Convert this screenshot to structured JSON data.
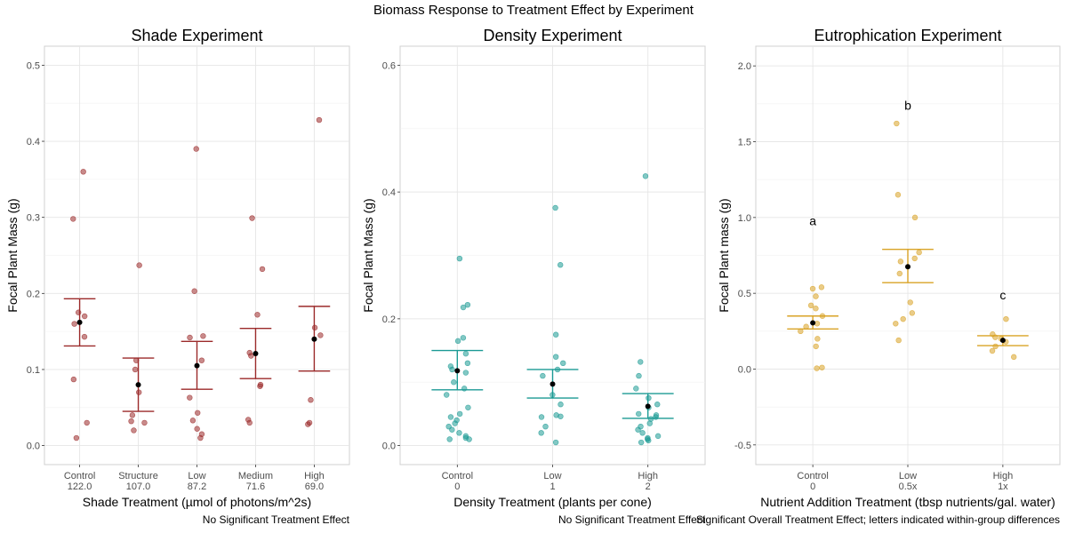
{
  "figure": {
    "title": "Biomass Response to Treatment Effect by Experiment"
  },
  "chart_data": [
    {
      "type": "scatter",
      "title": "Shade Experiment",
      "xlabel": "Shade Treatment (µmol of photons/m^2s)",
      "ylabel": "Focal Plant Mass (g)",
      "caption": "No Significant Treatment Effect",
      "color": "#9b2a2a",
      "categories": [
        "Control",
        "Structure",
        "Low",
        "Medium",
        "High"
      ],
      "sublabels": [
        "122.0",
        "107.0",
        "87.2",
        "71.6",
        "69.0"
      ],
      "ylim": [
        -0.025,
        0.525
      ],
      "yticks": [
        0.0,
        0.1,
        0.2,
        0.3,
        0.4,
        0.5
      ],
      "ytick_labels": [
        "0.0",
        "0.1",
        "0.2",
        "0.3",
        "0.4",
        "0.5"
      ],
      "grid": true,
      "means": [
        0.162,
        0.08,
        0.105,
        0.121,
        0.14
      ],
      "error_low": [
        0.131,
        0.045,
        0.074,
        0.088,
        0.098
      ],
      "error_high": [
        0.193,
        0.115,
        0.137,
        0.154,
        0.183
      ],
      "points": [
        [
          0.36,
          0.298,
          0.175,
          0.17,
          0.16,
          0.143,
          0.087,
          0.03,
          0.01
        ],
        [
          0.237,
          0.112,
          0.1,
          0.07,
          0.04,
          0.032,
          0.03,
          0.02
        ],
        [
          0.39,
          0.203,
          0.144,
          0.142,
          0.112,
          0.063,
          0.043,
          0.033,
          0.022,
          0.015,
          0.01
        ],
        [
          0.299,
          0.232,
          0.172,
          0.122,
          0.118,
          0.08,
          0.078,
          0.034,
          0.03
        ],
        [
          0.428,
          0.155,
          0.145,
          0.06,
          0.03,
          0.028
        ]
      ],
      "letters": []
    },
    {
      "type": "scatter",
      "title": "Density Experiment",
      "xlabel": "Density Treatment (plants per cone)",
      "ylabel": "Focal Plant Mass (g)",
      "caption": "No Significant Treatment Effect",
      "color": "#1b9a94",
      "categories": [
        "Control",
        "Low",
        "High"
      ],
      "sublabels": [
        "0",
        "1",
        "2"
      ],
      "ylim": [
        -0.03,
        0.63
      ],
      "yticks": [
        0.0,
        0.2,
        0.4,
        0.6
      ],
      "ytick_labels": [
        "0.0",
        "0.2",
        "0.4",
        "0.6"
      ],
      "grid": true,
      "means": [
        0.118,
        0.097,
        0.062
      ],
      "error_low": [
        0.088,
        0.075,
        0.043
      ],
      "error_high": [
        0.15,
        0.12,
        0.082
      ],
      "points": [
        [
          0.295,
          0.222,
          0.218,
          0.17,
          0.165,
          0.145,
          0.13,
          0.125,
          0.12,
          0.115,
          0.1,
          0.09,
          0.08,
          0.06,
          0.05,
          0.045,
          0.04,
          0.035,
          0.03,
          0.025,
          0.02,
          0.015,
          0.012,
          0.01,
          0.01
        ],
        [
          0.375,
          0.285,
          0.175,
          0.14,
          0.13,
          0.12,
          0.11,
          0.08,
          0.065,
          0.048,
          0.046,
          0.045,
          0.03,
          0.02,
          0.005
        ],
        [
          0.425,
          0.132,
          0.11,
          0.09,
          0.075,
          0.065,
          0.06,
          0.05,
          0.048,
          0.045,
          0.042,
          0.035,
          0.03,
          0.025,
          0.02,
          0.015,
          0.012,
          0.01,
          0.008,
          0.005
        ]
      ],
      "letters": []
    },
    {
      "type": "scatter",
      "title": "Eutrophication Experiment",
      "xlabel": "Nutrient Addition Treatment (tbsp nutrients/gal. water)",
      "ylabel": "Focal Plant mass (g)",
      "caption": "Significant Overall Treatment Effect; letters indicated within-group differences",
      "color": "#d9a326",
      "categories": [
        "Control",
        "Low",
        "High"
      ],
      "sublabels": [
        "0",
        "0.5x",
        "1x"
      ],
      "ylim": [
        -0.63,
        2.13
      ],
      "yticks": [
        -0.5,
        0.0,
        0.5,
        1.0,
        1.5,
        2.0
      ],
      "ytick_labels": [
        "-0.5",
        "0.0",
        "0.5",
        "1.0",
        "1.5",
        "2.0"
      ],
      "grid": true,
      "means": [
        0.305,
        0.675,
        0.19
      ],
      "error_low": [
        0.265,
        0.57,
        0.155
      ],
      "error_high": [
        0.35,
        0.79,
        0.22
      ],
      "points": [
        [
          0.54,
          0.53,
          0.48,
          0.42,
          0.4,
          0.35,
          0.3,
          0.28,
          0.25,
          0.2,
          0.15,
          0.01,
          0.005
        ],
        [
          1.62,
          1.15,
          1.0,
          0.77,
          0.73,
          0.71,
          0.63,
          0.44,
          0.37,
          0.33,
          0.3,
          0.19
        ],
        [
          0.33,
          0.23,
          0.21,
          0.2,
          0.18,
          0.15,
          0.12,
          0.08
        ]
      ],
      "letters": [
        {
          "label": "a",
          "y": 0.98
        },
        {
          "label": "b",
          "y": 1.74
        },
        {
          "label": "c",
          "y": 0.49
        }
      ]
    }
  ]
}
